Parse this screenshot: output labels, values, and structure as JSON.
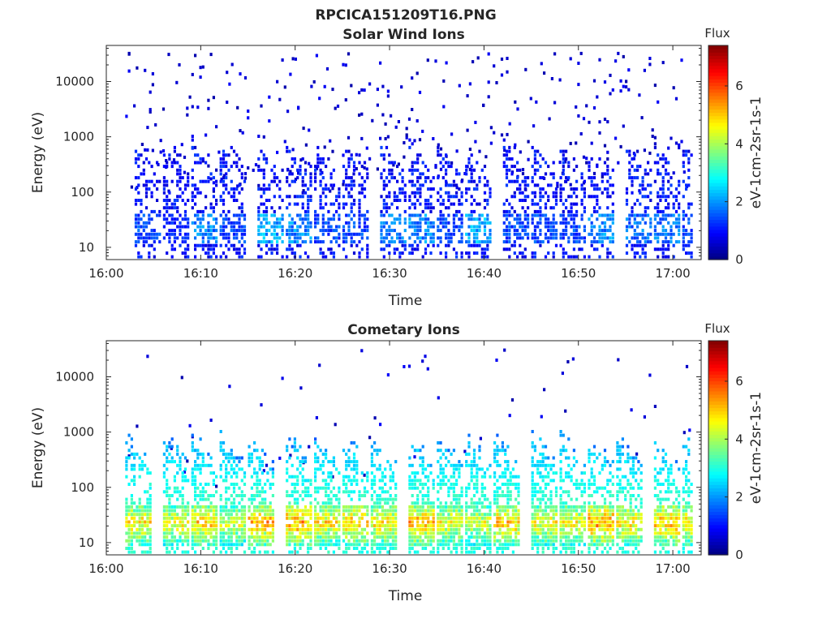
{
  "figure_title": "RPCICA151209T16.PNG",
  "chart_data": [
    {
      "type": "heatmap",
      "title": "Solar Wind Ions",
      "xlabel": "Time",
      "ylabel": "Energy (eV)",
      "yscale": "log",
      "xlim": [
        "16:00",
        "17:03"
      ],
      "ylim": [
        6,
        45000
      ],
      "x_ticks": [
        "16:00",
        "16:10",
        "16:20",
        "16:30",
        "16:40",
        "16:50",
        "17:00"
      ],
      "y_ticks": [
        "10",
        "100",
        "1000",
        "10000"
      ],
      "colorbar": {
        "title": "Flux",
        "label": "eV-1cm-2sr-1s-1",
        "range": [
          0,
          7.4
        ],
        "ticks": [
          "0",
          "2",
          "4",
          "6"
        ],
        "colormap": "jet"
      },
      "data_start": "16:02",
      "data_end": "17:02",
      "sweeps": [
        {
          "start": "16:03",
          "peak_energy_eV": 20,
          "peak_flux": 1.5
        },
        {
          "start": "16:06",
          "peak_energy_eV": 20,
          "peak_flux": 1.2
        },
        {
          "start": "16:09",
          "peak_energy_eV": 20,
          "peak_flux": 2.0
        },
        {
          "start": "16:12",
          "peak_energy_eV": 20,
          "peak_flux": 1.5
        },
        {
          "start": "16:16",
          "peak_energy_eV": 20,
          "peak_flux": 2.2
        },
        {
          "start": "16:19",
          "peak_energy_eV": 20,
          "peak_flux": 2.0
        },
        {
          "start": "16:22",
          "peak_energy_eV": 20,
          "peak_flux": 1.5
        },
        {
          "start": "16:25",
          "peak_energy_eV": 20,
          "peak_flux": 1.5
        },
        {
          "start": "16:29",
          "peak_energy_eV": 20,
          "peak_flux": 1.8
        },
        {
          "start": "16:32",
          "peak_energy_eV": 20,
          "peak_flux": 2.0
        },
        {
          "start": "16:35",
          "peak_energy_eV": 20,
          "peak_flux": 1.5
        },
        {
          "start": "16:38",
          "peak_energy_eV": 20,
          "peak_flux": 2.2
        },
        {
          "start": "16:42",
          "peak_energy_eV": 20,
          "peak_flux": 1.5
        },
        {
          "start": "16:45",
          "peak_energy_eV": 20,
          "peak_flux": 1.5
        },
        {
          "start": "16:48",
          "peak_energy_eV": 20,
          "peak_flux": 1.5
        },
        {
          "start": "16:51",
          "peak_energy_eV": 20,
          "peak_flux": 2.0
        },
        {
          "start": "16:55",
          "peak_energy_eV": 20,
          "peak_flux": 1.8
        },
        {
          "start": "16:58",
          "peak_energy_eV": 20,
          "peak_flux": 1.8
        },
        {
          "start": "17:01",
          "peak_energy_eV": 20,
          "peak_flux": 1.5
        }
      ]
    },
    {
      "type": "heatmap",
      "title": "Cometary Ions",
      "xlabel": "Time",
      "ylabel": "Energy (eV)",
      "yscale": "log",
      "xlim": [
        "16:00",
        "17:03"
      ],
      "ylim": [
        6,
        45000
      ],
      "x_ticks": [
        "16:00",
        "16:10",
        "16:20",
        "16:30",
        "16:40",
        "16:50",
        "17:00"
      ],
      "y_ticks": [
        "10",
        "100",
        "1000",
        "10000"
      ],
      "colorbar": {
        "title": "Flux",
        "label": "eV-1cm-2sr-1s-1",
        "range": [
          0,
          7.4
        ],
        "ticks": [
          "0",
          "2",
          "4",
          "6"
        ],
        "colormap": "jet"
      },
      "data_start": "16:02",
      "data_end": "17:02",
      "sweeps": [
        {
          "start": "16:02",
          "peak_energy_eV": 22,
          "peak_flux": 5.0
        },
        {
          "start": "16:06",
          "peak_energy_eV": 22,
          "peak_flux": 4.8
        },
        {
          "start": "16:09",
          "peak_energy_eV": 22,
          "peak_flux": 5.2
        },
        {
          "start": "16:12",
          "peak_energy_eV": 22,
          "peak_flux": 4.6
        },
        {
          "start": "16:15",
          "peak_energy_eV": 22,
          "peak_flux": 5.4
        },
        {
          "start": "16:19",
          "peak_energy_eV": 22,
          "peak_flux": 5.5
        },
        {
          "start": "16:22",
          "peak_energy_eV": 22,
          "peak_flux": 5.0
        },
        {
          "start": "16:25",
          "peak_energy_eV": 22,
          "peak_flux": 5.2
        },
        {
          "start": "16:28",
          "peak_energy_eV": 22,
          "peak_flux": 5.0
        },
        {
          "start": "16:32",
          "peak_energy_eV": 22,
          "peak_flux": 5.4
        },
        {
          "start": "16:35",
          "peak_energy_eV": 22,
          "peak_flux": 4.8
        },
        {
          "start": "16:38",
          "peak_energy_eV": 22,
          "peak_flux": 4.6
        },
        {
          "start": "16:41",
          "peak_energy_eV": 22,
          "peak_flux": 5.2
        },
        {
          "start": "16:45",
          "peak_energy_eV": 22,
          "peak_flux": 4.8
        },
        {
          "start": "16:48",
          "peak_energy_eV": 22,
          "peak_flux": 4.8
        },
        {
          "start": "16:51",
          "peak_energy_eV": 22,
          "peak_flux": 5.6
        },
        {
          "start": "16:54",
          "peak_energy_eV": 22,
          "peak_flux": 5.0
        },
        {
          "start": "16:58",
          "peak_energy_eV": 22,
          "peak_flux": 5.4
        },
        {
          "start": "17:01",
          "peak_energy_eV": 22,
          "peak_flux": 5.0
        }
      ]
    }
  ]
}
